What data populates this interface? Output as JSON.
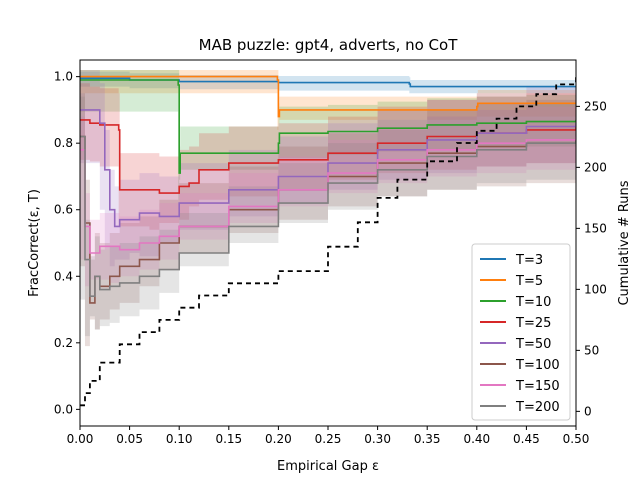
{
  "chart_data": {
    "type": "line",
    "title": "MAB puzzle: gpt4, adverts, no CoT",
    "xlabel": "Empirical Gap ε",
    "ylabel_left": "FracCorrect(ε, T)",
    "ylabel_right": "Cumulative # Runs",
    "xlim": [
      0.0,
      0.5
    ],
    "ylim_left": [
      -0.05,
      1.05
    ],
    "ylim_right": [
      -12,
      288
    ],
    "x_ticks": [
      "0.00",
      "0.05",
      "0.10",
      "0.15",
      "0.20",
      "0.25",
      "0.30",
      "0.35",
      "0.40",
      "0.45",
      "0.50"
    ],
    "y_ticks_left": [
      "0.0",
      "0.2",
      "0.4",
      "0.6",
      "0.8",
      "1.0"
    ],
    "y_ticks_right": [
      "0",
      "50",
      "100",
      "150",
      "200",
      "250"
    ],
    "legend_position": "lower-right",
    "series": [
      {
        "name": "T=3",
        "color": "#1f77b4",
        "band": 0.02,
        "points": [
          [
            0.0,
            0.995
          ],
          [
            0.05,
            0.99
          ],
          [
            0.1,
            0.985
          ],
          [
            0.2,
            0.982
          ],
          [
            0.332,
            0.978
          ],
          [
            0.333,
            0.97
          ],
          [
            0.5,
            0.97
          ]
        ]
      },
      {
        "name": "T=5",
        "color": "#ff7f0e",
        "band": 0.04,
        "points": [
          [
            0.0,
            1.0
          ],
          [
            0.199,
            0.99
          ],
          [
            0.2,
            0.88
          ],
          [
            0.201,
            0.9
          ],
          [
            0.4,
            0.91
          ],
          [
            0.401,
            0.92
          ],
          [
            0.5,
            0.92
          ]
        ]
      },
      {
        "name": "T=10",
        "color": "#2ca02c",
        "band": 0.08,
        "points": [
          [
            0.0,
            0.99
          ],
          [
            0.099,
            0.975
          ],
          [
            0.1,
            0.71
          ],
          [
            0.101,
            0.77
          ],
          [
            0.2,
            0.8
          ],
          [
            0.201,
            0.83
          ],
          [
            0.25,
            0.835
          ],
          [
            0.3,
            0.845
          ],
          [
            0.35,
            0.855
          ],
          [
            0.4,
            0.86
          ],
          [
            0.45,
            0.865
          ],
          [
            0.5,
            0.87
          ]
        ]
      },
      {
        "name": "T=25",
        "color": "#d62728",
        "band": 0.11,
        "points": [
          [
            0.0,
            0.87
          ],
          [
            0.01,
            0.86
          ],
          [
            0.02,
            0.855
          ],
          [
            0.039,
            0.84
          ],
          [
            0.04,
            0.66
          ],
          [
            0.07,
            0.66
          ],
          [
            0.08,
            0.65
          ],
          [
            0.1,
            0.67
          ],
          [
            0.11,
            0.68
          ],
          [
            0.12,
            0.72
          ],
          [
            0.15,
            0.74
          ],
          [
            0.2,
            0.75
          ],
          [
            0.25,
            0.77
          ],
          [
            0.3,
            0.8
          ],
          [
            0.35,
            0.82
          ],
          [
            0.4,
            0.83
          ],
          [
            0.45,
            0.84
          ],
          [
            0.5,
            0.85
          ]
        ]
      },
      {
        "name": "T=50",
        "color": "#9467bd",
        "band": 0.12,
        "points": [
          [
            0.0,
            0.9
          ],
          [
            0.02,
            0.86
          ],
          [
            0.025,
            0.72
          ],
          [
            0.03,
            0.6
          ],
          [
            0.035,
            0.55
          ],
          [
            0.04,
            0.57
          ],
          [
            0.05,
            0.57
          ],
          [
            0.06,
            0.59
          ],
          [
            0.08,
            0.58
          ],
          [
            0.1,
            0.62
          ],
          [
            0.15,
            0.66
          ],
          [
            0.2,
            0.7
          ],
          [
            0.25,
            0.74
          ],
          [
            0.3,
            0.78
          ],
          [
            0.35,
            0.81
          ],
          [
            0.4,
            0.83
          ],
          [
            0.45,
            0.85
          ],
          [
            0.5,
            0.86
          ]
        ]
      },
      {
        "name": "T=100",
        "color": "#8c564b",
        "band": 0.13,
        "points": [
          [
            0.0,
            0.82
          ],
          [
            0.005,
            0.56
          ],
          [
            0.01,
            0.32
          ],
          [
            0.015,
            0.4
          ],
          [
            0.02,
            0.37
          ],
          [
            0.03,
            0.4
          ],
          [
            0.04,
            0.43
          ],
          [
            0.06,
            0.45
          ],
          [
            0.08,
            0.5
          ],
          [
            0.1,
            0.55
          ],
          [
            0.15,
            0.6
          ],
          [
            0.2,
            0.66
          ],
          [
            0.25,
            0.7
          ],
          [
            0.3,
            0.74
          ],
          [
            0.35,
            0.77
          ],
          [
            0.4,
            0.79
          ],
          [
            0.45,
            0.8
          ],
          [
            0.5,
            0.81
          ]
        ]
      },
      {
        "name": "T=150",
        "color": "#e377c2",
        "band": 0.1,
        "points": [
          [
            0.0,
            0.78
          ],
          [
            0.005,
            0.55
          ],
          [
            0.01,
            0.47
          ],
          [
            0.02,
            0.49
          ],
          [
            0.03,
            0.49
          ],
          [
            0.04,
            0.48
          ],
          [
            0.06,
            0.5
          ],
          [
            0.08,
            0.52
          ],
          [
            0.1,
            0.55
          ],
          [
            0.15,
            0.61
          ],
          [
            0.2,
            0.66
          ],
          [
            0.25,
            0.71
          ],
          [
            0.3,
            0.75
          ],
          [
            0.35,
            0.78
          ],
          [
            0.4,
            0.8
          ],
          [
            0.45,
            0.81
          ],
          [
            0.5,
            0.82
          ]
        ]
      },
      {
        "name": "T=200",
        "color": "#7f7f7f",
        "band": 0.12,
        "points": [
          [
            0.0,
            0.82
          ],
          [
            0.005,
            0.45
          ],
          [
            0.01,
            0.34
          ],
          [
            0.015,
            0.4
          ],
          [
            0.02,
            0.36
          ],
          [
            0.03,
            0.37
          ],
          [
            0.04,
            0.38
          ],
          [
            0.06,
            0.4
          ],
          [
            0.08,
            0.42
          ],
          [
            0.1,
            0.47
          ],
          [
            0.15,
            0.55
          ],
          [
            0.2,
            0.62
          ],
          [
            0.25,
            0.68
          ],
          [
            0.3,
            0.72
          ],
          [
            0.35,
            0.76
          ],
          [
            0.4,
            0.78
          ],
          [
            0.45,
            0.8
          ],
          [
            0.5,
            0.81
          ]
        ]
      }
    ],
    "cumulative_runs": {
      "color": "#000000",
      "style": "dashed",
      "points": [
        [
          0.0,
          5
        ],
        [
          0.005,
          15
        ],
        [
          0.01,
          25
        ],
        [
          0.02,
          40
        ],
        [
          0.04,
          55
        ],
        [
          0.06,
          65
        ],
        [
          0.08,
          75
        ],
        [
          0.1,
          85
        ],
        [
          0.12,
          95
        ],
        [
          0.15,
          105
        ],
        [
          0.2,
          115
        ],
        [
          0.25,
          135
        ],
        [
          0.28,
          155
        ],
        [
          0.3,
          175
        ],
        [
          0.32,
          190
        ],
        [
          0.35,
          205
        ],
        [
          0.38,
          220
        ],
        [
          0.4,
          230
        ],
        [
          0.42,
          240
        ],
        [
          0.44,
          250
        ],
        [
          0.46,
          260
        ],
        [
          0.48,
          268
        ],
        [
          0.5,
          275
        ]
      ]
    }
  }
}
